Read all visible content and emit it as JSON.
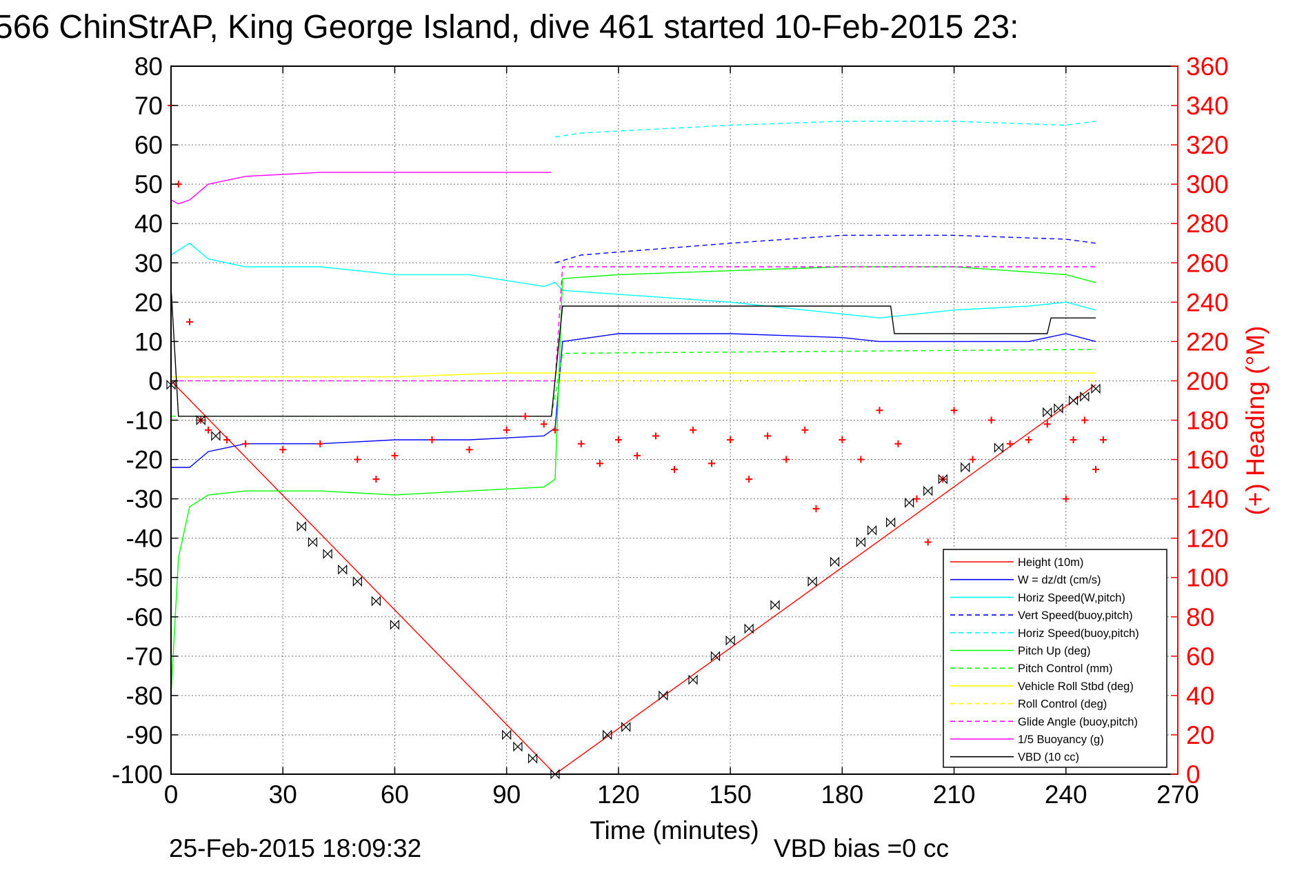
{
  "title": "566 ChinStrAP, King George Island, dive 461 started 10-Feb-2015 23:",
  "footer": {
    "timestamp": "25-Feb-2015 18:09:32",
    "vbd_bias": "VBD bias =0 cc"
  },
  "colors": {
    "red": "#ff0000",
    "blue": "#0000ff",
    "cyan": "#00ffff",
    "green": "#00ff00",
    "yellow": "#ffff00",
    "magenta": "#ff00ff",
    "black": "#000000"
  },
  "chart_data": {
    "type": "line",
    "title": "566 ChinStrAP, King George Island, dive 461 started 10-Feb-2015 23:",
    "xlabel": "Time (minutes)",
    "ylabel": "",
    "y2label": "(+) Heading (°M)",
    "xlim": [
      0,
      270
    ],
    "ylim": [
      -100,
      80
    ],
    "y2lim": [
      0,
      360
    ],
    "xticks": [
      "0",
      "30",
      "60",
      "90",
      "120",
      "150",
      "180",
      "210",
      "240",
      "270"
    ],
    "yticks": [
      "80",
      "70",
      "60",
      "50",
      "40",
      "30",
      "20",
      "10",
      "0",
      "-10",
      "-20",
      "-30",
      "-40",
      "-50",
      "-60",
      "-70",
      "-80",
      "-90",
      "-100"
    ],
    "y2ticks": [
      "360",
      "340",
      "320",
      "300",
      "280",
      "260",
      "240",
      "220",
      "200",
      "180",
      "160",
      "140",
      "120",
      "100",
      "80",
      "60",
      "40",
      "20",
      "0"
    ],
    "grid": true,
    "legend_position": "bottom-right",
    "series": [
      {
        "name": "Height (10m)",
        "color": "red",
        "style": "solid",
        "x": [
          0,
          103,
          248
        ],
        "y": [
          0,
          -100,
          -1
        ]
      },
      {
        "name": "W = dz/dt (cm/s)",
        "color": "blue",
        "style": "solid",
        "x": [
          0,
          5,
          10,
          20,
          40,
          60,
          80,
          100,
          103,
          105,
          120,
          150,
          180,
          190,
          210,
          230,
          240,
          248
        ],
        "y": [
          -22,
          -22,
          -18,
          -16,
          -16,
          -15,
          -15,
          -14,
          -12,
          10,
          12,
          12,
          11,
          10,
          10,
          10,
          12,
          10
        ]
      },
      {
        "name": "Horiz Speed(W,pitch)",
        "color": "cyan",
        "style": "solid",
        "x": [
          0,
          5,
          10,
          20,
          40,
          60,
          80,
          100,
          103,
          105,
          120,
          150,
          180,
          190,
          210,
          230,
          240,
          248
        ],
        "y": [
          32,
          35,
          31,
          29,
          29,
          27,
          27,
          24,
          25,
          23,
          22,
          20,
          17,
          16,
          18,
          19,
          20,
          18
        ]
      },
      {
        "name": "Vert Speed(buoy,pitch)",
        "color": "blue",
        "style": "dashed",
        "x": [
          103,
          110,
          150,
          180,
          210,
          240,
          248
        ],
        "y": [
          30,
          32,
          35,
          37,
          37,
          36,
          35
        ]
      },
      {
        "name": "Horiz Speed(buoy,pitch)",
        "color": "cyan",
        "style": "dashed",
        "x": [
          103,
          110,
          150,
          180,
          210,
          240,
          248
        ],
        "y": [
          62,
          63,
          65,
          66,
          66,
          65,
          66
        ]
      },
      {
        "name": "Pitch Up (deg)",
        "color": "green",
        "style": "solid",
        "x": [
          0,
          2,
          5,
          10,
          20,
          40,
          60,
          80,
          100,
          103,
          105,
          120,
          150,
          180,
          210,
          240,
          248
        ],
        "y": [
          -80,
          -45,
          -32,
          -29,
          -28,
          -28,
          -29,
          -28,
          -27,
          -25,
          26,
          27,
          28,
          29,
          29,
          27,
          25
        ]
      },
      {
        "name": "Pitch Control (mm)",
        "color": "green",
        "style": "dashed",
        "x": [
          0,
          102,
          105,
          248
        ],
        "y": [
          -9,
          -9,
          7,
          8
        ]
      },
      {
        "name": "Vehicle Roll Stbd (deg)",
        "color": "yellow",
        "style": "solid",
        "x": [
          0,
          30,
          60,
          90,
          103,
          120,
          150,
          180,
          210,
          240,
          248
        ],
        "y": [
          1,
          1,
          1,
          2,
          2,
          2,
          2,
          2,
          2,
          2,
          2
        ]
      },
      {
        "name": "Roll Control (deg)",
        "color": "yellow",
        "style": "dashed",
        "x": [
          0,
          248
        ],
        "y": [
          0,
          0
        ]
      },
      {
        "name": "Glide Angle (buoy,pitch)",
        "color": "magenta",
        "style": "dashed",
        "x": [
          0,
          103,
          105,
          248
        ],
        "y": [
          0,
          0,
          29,
          29
        ]
      },
      {
        "name": "1/5 Buoyancy (g)",
        "color": "magenta",
        "style": "solid",
        "x": [
          0,
          2,
          5,
          10,
          20,
          40,
          60,
          80,
          100,
          102
        ],
        "y": [
          46,
          45,
          46,
          50,
          52,
          53,
          53,
          53,
          53,
          53
        ]
      },
      {
        "name": "VBD (10 cc)",
        "color": "black",
        "style": "solid",
        "x": [
          0,
          2,
          102,
          105,
          193,
          194,
          235,
          236,
          248
        ],
        "y": [
          24,
          -9,
          -9,
          19,
          19,
          12,
          12,
          16,
          16
        ]
      }
    ],
    "heading_series": {
      "name": "(+) Heading",
      "color": "red",
      "marker": "+",
      "axis": "right",
      "x": [
        0,
        2,
        5,
        8,
        10,
        15,
        20,
        30,
        40,
        50,
        55,
        60,
        70,
        80,
        90,
        95,
        100,
        103,
        110,
        115,
        120,
        125,
        130,
        135,
        140,
        145,
        150,
        155,
        160,
        165,
        170,
        173,
        180,
        185,
        190,
        195,
        200,
        203,
        207,
        210,
        215,
        220,
        225,
        230,
        235,
        240,
        242,
        245,
        248,
        250
      ],
      "y": [
        340,
        300,
        230,
        180,
        175,
        170,
        168,
        165,
        168,
        160,
        150,
        162,
        170,
        165,
        175,
        182,
        178,
        175,
        168,
        158,
        170,
        162,
        172,
        155,
        175,
        158,
        170,
        150,
        172,
        160,
        175,
        135,
        170,
        160,
        185,
        168,
        140,
        118,
        150,
        185,
        160,
        180,
        168,
        170,
        178,
        140,
        170,
        180,
        155,
        170
      ]
    },
    "markers": {
      "name": "Height markers",
      "x": [
        0,
        8,
        12,
        35,
        38,
        42,
        46,
        50,
        55,
        60,
        90,
        93,
        97,
        103,
        117,
        122,
        132,
        140,
        146,
        150,
        155,
        162,
        172,
        178,
        185,
        188,
        193,
        198,
        203,
        207,
        213,
        222,
        235,
        238,
        242,
        245,
        248
      ],
      "y": [
        -1,
        -10,
        -14,
        -37,
        -41,
        -44,
        -48,
        -51,
        -56,
        -62,
        -90,
        -93,
        -96,
        -100,
        -90,
        -88,
        -80,
        -76,
        -70,
        -66,
        -63,
        -57,
        -51,
        -46,
        -41,
        -38,
        -36,
        -31,
        -28,
        -25,
        -22,
        -17,
        -8,
        -7,
        -5,
        -4,
        -2
      ]
    },
    "legend": [
      "Height (10m)",
      "W = dz/dt (cm/s)",
      "Horiz Speed(W,pitch)",
      "Vert Speed(buoy,pitch)",
      "Horiz Speed(buoy,pitch)",
      "Pitch Up (deg)",
      "Pitch Control (mm)",
      "Vehicle Roll Stbd (deg)",
      "Roll Control (deg)",
      "Glide Angle (buoy,pitch)",
      "1/5 Buoyancy (g)",
      "VBD (10 cc)"
    ]
  }
}
